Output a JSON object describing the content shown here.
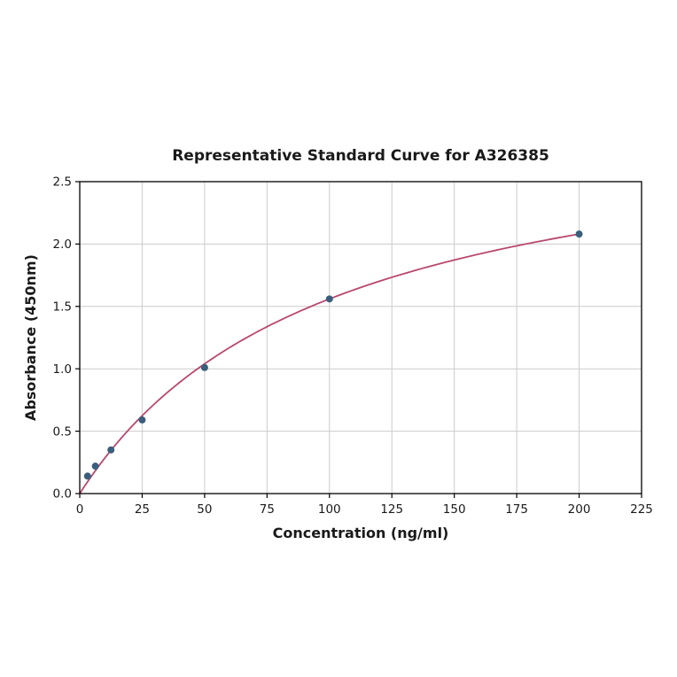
{
  "chart": {
    "title": "Representative Standard Curve for A326385",
    "xlabel": "Concentration (ng/ml)",
    "ylabel": "Absorbance (450nm)"
  },
  "chart_data": {
    "type": "scatter",
    "title": "Representative Standard Curve for A326385",
    "xlabel": "Concentration (ng/ml)",
    "ylabel": "Absorbance (450nm)",
    "points": [
      {
        "x": 3.125,
        "y": 0.14
      },
      {
        "x": 6.25,
        "y": 0.22
      },
      {
        "x": 12.5,
        "y": 0.35
      },
      {
        "x": 25,
        "y": 0.59
      },
      {
        "x": 50,
        "y": 1.01
      },
      {
        "x": 100,
        "y": 1.56
      },
      {
        "x": 200,
        "y": 2.08
      }
    ],
    "fit_curve": {
      "type": "saturating",
      "a": 3.12,
      "b": 100,
      "x_start": 0,
      "x_end": 200
    },
    "xlim": [
      0,
      225
    ],
    "ylim": [
      0,
      2.5
    ],
    "xticks": [
      0,
      25,
      50,
      75,
      100,
      125,
      150,
      175,
      200,
      225
    ],
    "yticks": [
      0.0,
      0.5,
      1.0,
      1.5,
      2.0,
      2.5
    ],
    "grid": true,
    "legend": "none",
    "colors": {
      "point": "#3a5f7d",
      "curve": "#b9486e",
      "grid": "#cccccc",
      "axis": "#000000"
    }
  }
}
